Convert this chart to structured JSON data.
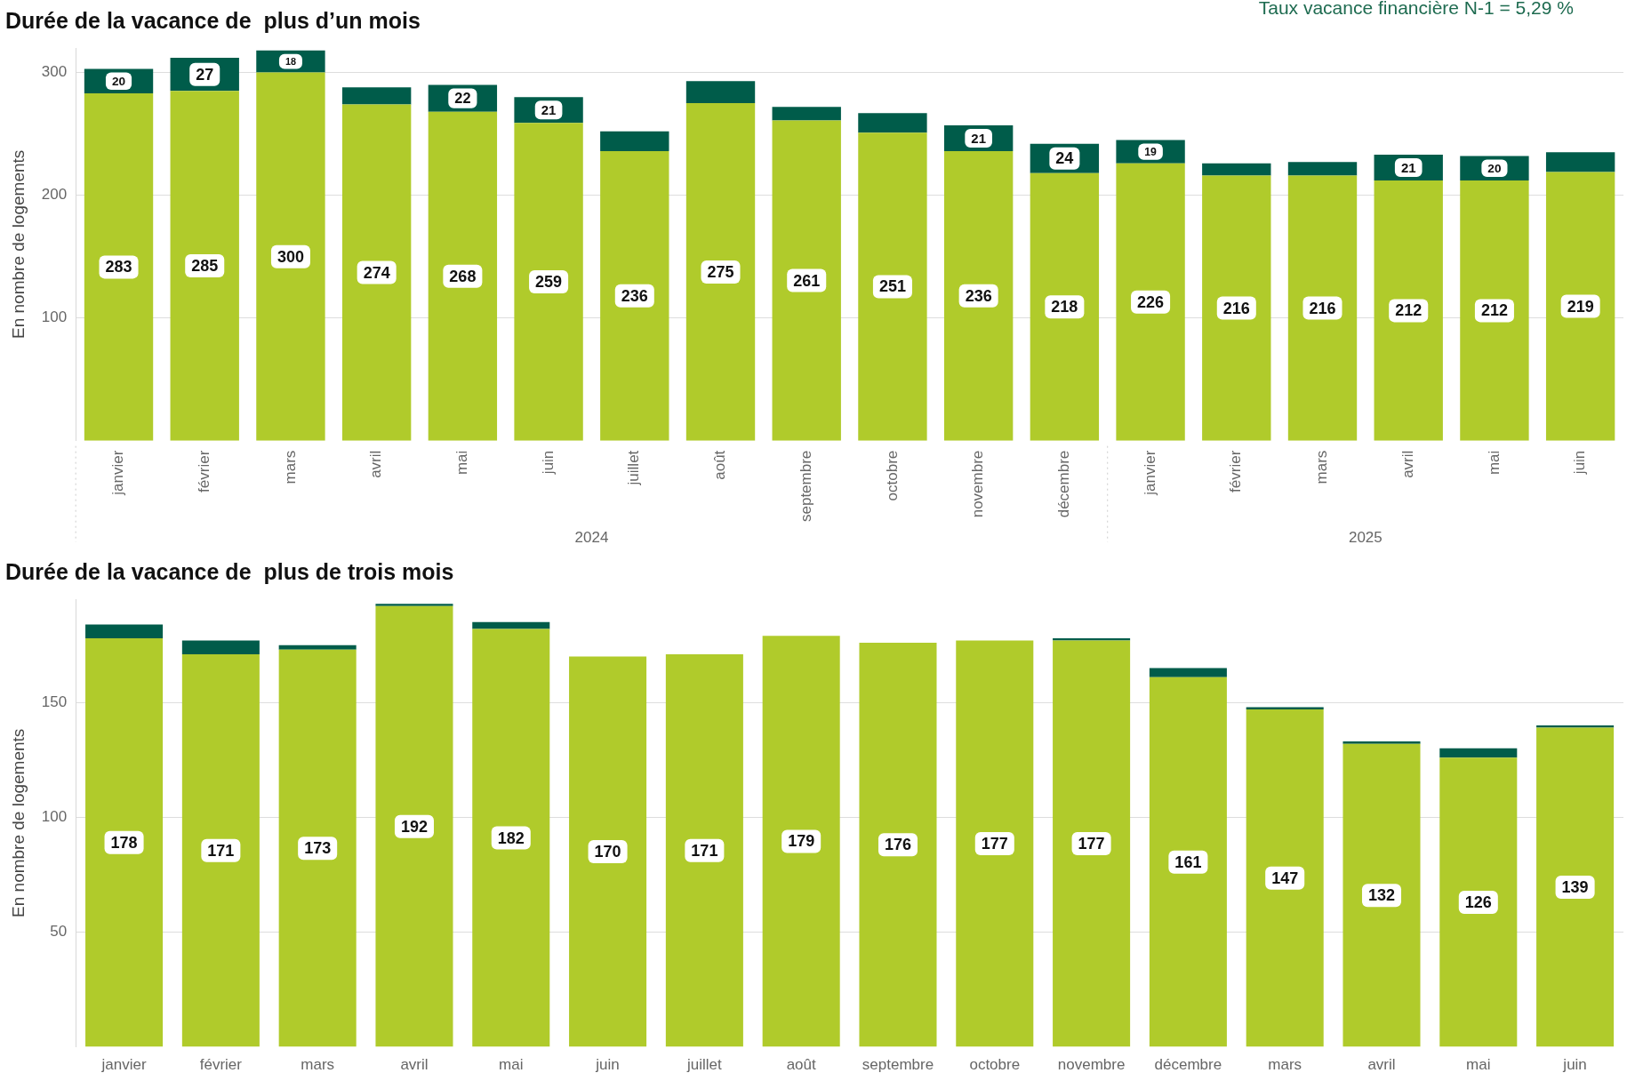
{
  "chart_data": [
    {
      "type": "bar",
      "title": "Durée de la vacance de  plus d’un mois",
      "ylabel": "En nombre de logements",
      "stacked": true,
      "legend": false,
      "grid": "y",
      "ylim": [
        0,
        320
      ],
      "yticks": [
        100,
        200,
        300
      ],
      "categories": [
        "janvier",
        "février",
        "mars",
        "avril",
        "mai",
        "juin",
        "juillet",
        "août",
        "septembre",
        "octobre",
        "novembre",
        "décembre",
        "janvier",
        "février",
        "mars",
        "avril",
        "mai",
        "juin"
      ],
      "series": [
        {
          "color": "#b0cb2b",
          "values": [
            283,
            285,
            300,
            274,
            268,
            259,
            236,
            275,
            261,
            251,
            236,
            218,
            226,
            216,
            216,
            212,
            212,
            219
          ],
          "value_labels": [
            "283",
            "285",
            "300",
            "274",
            "268",
            "259",
            "236",
            "275",
            "261",
            "251",
            "236",
            "218",
            "226",
            "216",
            "216",
            "212",
            "212",
            "219"
          ]
        },
        {
          "color": "#005c4a",
          "values": [
            20,
            27,
            18,
            14,
            22,
            21,
            16,
            18,
            11,
            16,
            21,
            24,
            19,
            10,
            11,
            21,
            20,
            16
          ],
          "value_labels": [
            "20",
            "27",
            "18",
            null,
            "22",
            "21",
            null,
            null,
            null,
            null,
            "21",
            "24",
            "19",
            null,
            null,
            "21",
            "20",
            null
          ]
        }
      ],
      "annotations": [
        "Taux vacance financière N-1 = 5,29 %",
        "2024",
        "2025"
      ]
    },
    {
      "type": "bar",
      "title": "Durée de la vacance de  plus de trois mois",
      "ylabel": "En nombre de logements",
      "stacked": true,
      "legend": false,
      "grid": "y",
      "ylim": [
        0,
        195
      ],
      "yticks": [
        50,
        100,
        150
      ],
      "categories": [
        "janvier",
        "février",
        "mars",
        "avril",
        "mai",
        "juin",
        "juillet",
        "août",
        "septembre",
        "octobre",
        "novembre",
        "décembre",
        "mars",
        "avril",
        "mai",
        "juin"
      ],
      "series": [
        {
          "color": "#b0cb2b",
          "values": [
            178,
            171,
            173,
            192,
            182,
            170,
            171,
            179,
            176,
            177,
            177,
            161,
            147,
            132,
            126,
            139
          ],
          "value_labels": [
            "178",
            "171",
            "173",
            "192",
            "182",
            "170",
            "171",
            "179",
            "176",
            "177",
            "177",
            "161",
            "147",
            "132",
            "126",
            "139"
          ]
        },
        {
          "color": "#005c4a",
          "values": [
            6,
            6,
            2,
            1,
            3,
            0,
            0,
            0,
            0,
            0,
            1,
            4,
            1,
            1,
            4,
            1
          ]
        }
      ]
    }
  ]
}
